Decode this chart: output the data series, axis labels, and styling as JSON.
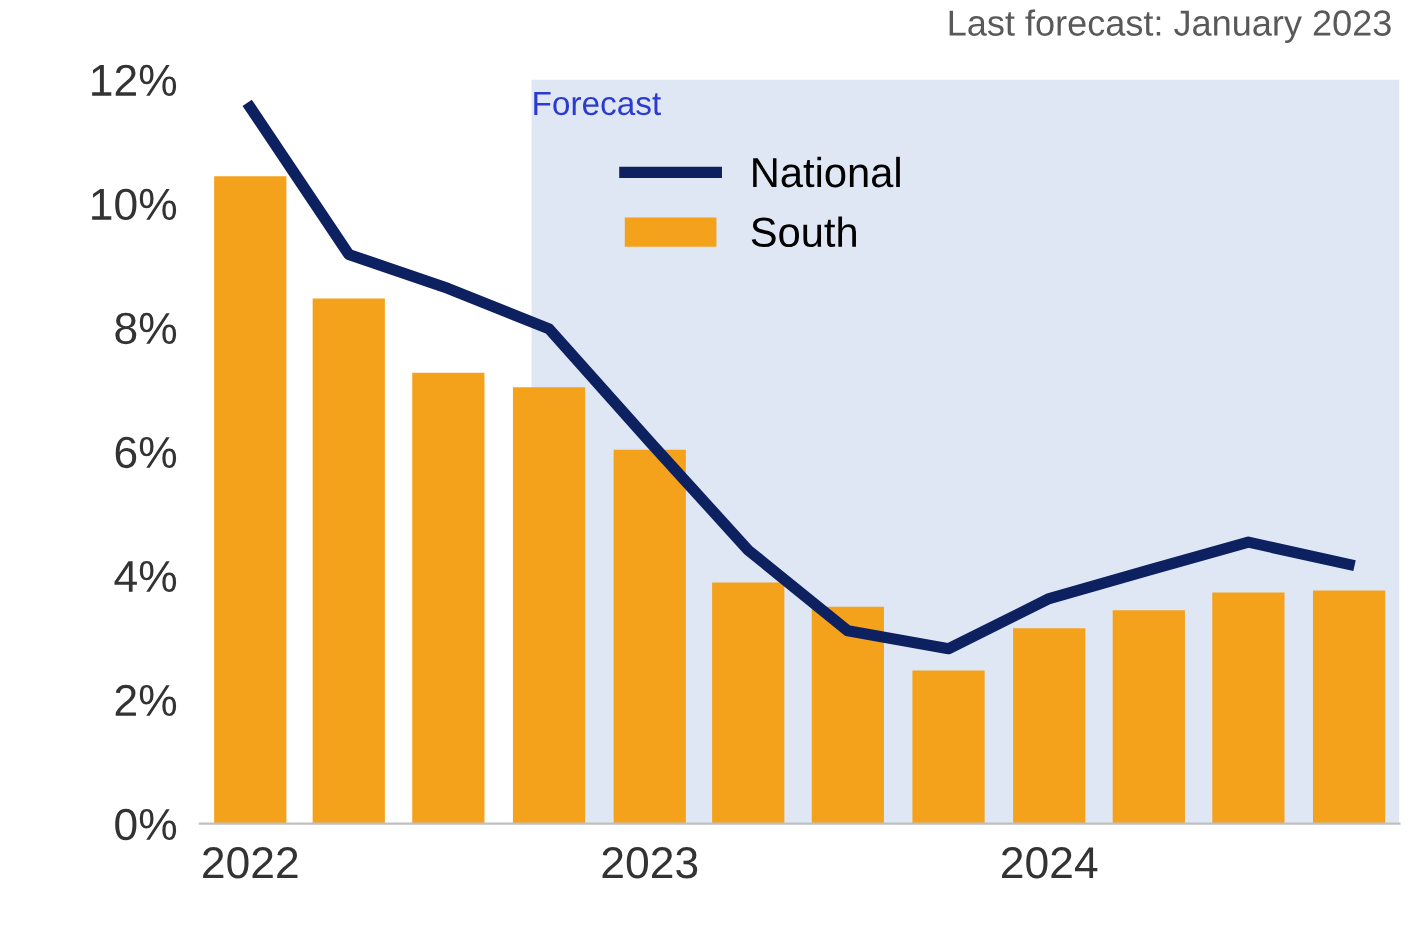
{
  "chart_data": {
    "type": "bar",
    "x": [
      "2022-01",
      "2022-04",
      "2022-07",
      "2022-10",
      "2023-01",
      "2023-04",
      "2023-07",
      "2023-10",
      "2024-01",
      "2024-04",
      "2024-07",
      "2024-10"
    ],
    "series": [
      {
        "name": "South",
        "color": "#f4a21c",
        "values": [
          10.44,
          8.47,
          7.27,
          7.04,
          6.03,
          3.89,
          3.5,
          2.47,
          3.15,
          3.44,
          3.73,
          3.76
        ]
      },
      {
        "name": "National",
        "type": "line",
        "color": "#0d2160",
        "values": [
          11.55,
          9.18,
          8.63,
          7.98,
          6.16,
          4.41,
          3.11,
          2.82,
          3.63,
          4.09,
          4.54,
          4.18
        ]
      }
    ],
    "xlim": [
      "2021-11-16",
      "2024-11-16"
    ],
    "xticks": [
      "2022",
      "2023",
      "2024"
    ],
    "ylim": [
      0,
      12
    ],
    "yticks": [
      {
        "value": 0,
        "label": "0%"
      },
      {
        "value": 2,
        "label": "2%"
      },
      {
        "value": 4,
        "label": "4%"
      },
      {
        "value": 6,
        "label": "6%"
      },
      {
        "value": 8,
        "label": "8%"
      },
      {
        "value": 10,
        "label": "10%"
      },
      {
        "value": 12,
        "label": "12%"
      }
    ],
    "bands": [
      {
        "axis": "x",
        "from": "2022-09-15",
        "to": "2024-11-16",
        "label": "Forecast",
        "color": "#dfe7f5"
      }
    ],
    "annotations": [
      "Last forecast: January 2023"
    ],
    "legend": "top",
    "grid": false,
    "line_style": "solid",
    "marker": "none"
  }
}
